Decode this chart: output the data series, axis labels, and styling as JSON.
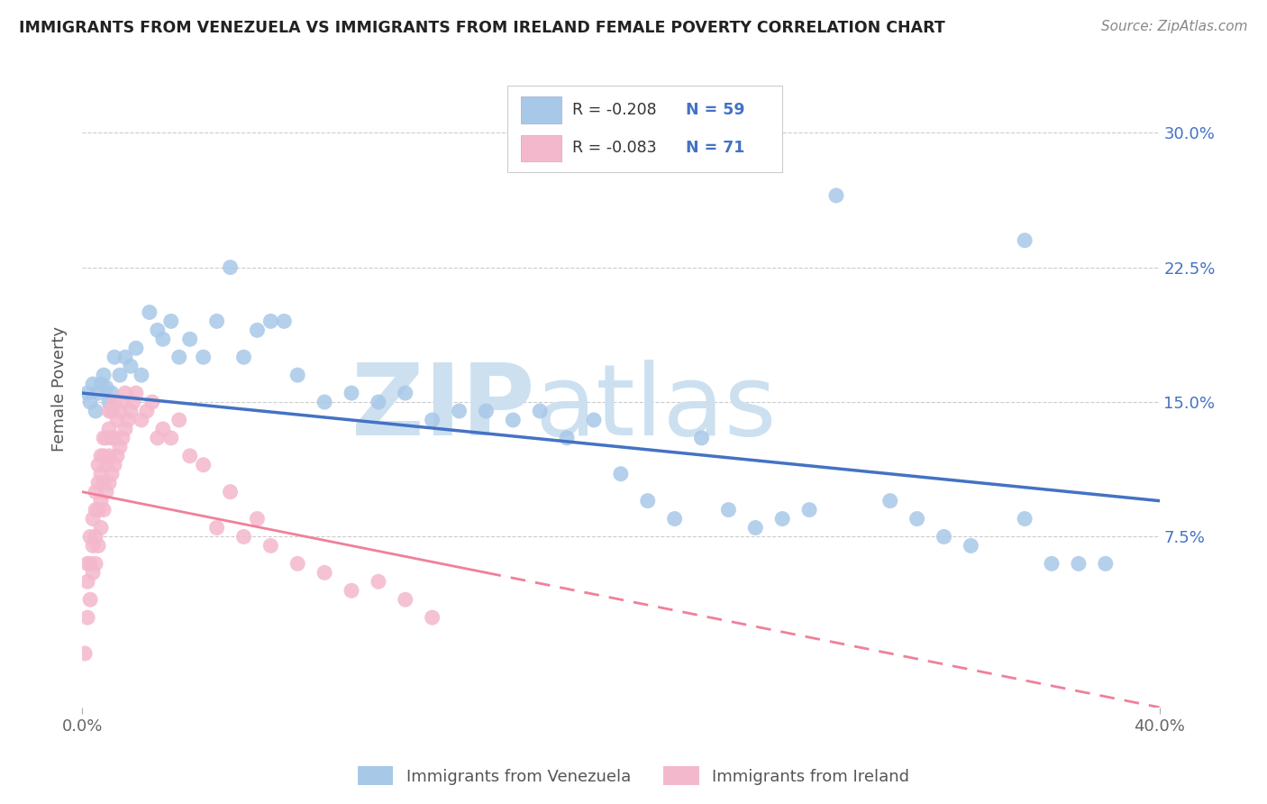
{
  "title": "IMMIGRANTS FROM VENEZUELA VS IMMIGRANTS FROM IRELAND FEMALE POVERTY CORRELATION CHART",
  "source": "Source: ZipAtlas.com",
  "ylabel": "Female Poverty",
  "ytick_labels": [
    "7.5%",
    "15.0%",
    "22.5%",
    "30.0%"
  ],
  "ytick_values": [
    0.075,
    0.15,
    0.225,
    0.3
  ],
  "xlim": [
    0.0,
    0.4
  ],
  "ylim": [
    -0.02,
    0.335
  ],
  "legend_r1": "R = -0.208",
  "legend_n1": "N = 59",
  "legend_r2": "R = -0.083",
  "legend_n2": "N = 71",
  "color_venezuela": "#a8c8e8",
  "color_ireland": "#f4b8cc",
  "color_text_blue": "#4472c4",
  "color_line_venezuela": "#4472c4",
  "color_line_ireland": "#f08098",
  "background_color": "#ffffff",
  "watermark_zip": "ZIP",
  "watermark_atlas": "atlas",
  "watermark_color": "#cce0f0",
  "venezuela_x": [
    0.002,
    0.003,
    0.004,
    0.005,
    0.006,
    0.007,
    0.008,
    0.009,
    0.01,
    0.011,
    0.012,
    0.014,
    0.016,
    0.018,
    0.02,
    0.022,
    0.025,
    0.028,
    0.03,
    0.033,
    0.036,
    0.04,
    0.045,
    0.05,
    0.055,
    0.06,
    0.065,
    0.07,
    0.075,
    0.08,
    0.09,
    0.1,
    0.11,
    0.12,
    0.13,
    0.14,
    0.15,
    0.16,
    0.17,
    0.18,
    0.19,
    0.2,
    0.21,
    0.22,
    0.23,
    0.24,
    0.25,
    0.26,
    0.27,
    0.28,
    0.3,
    0.31,
    0.32,
    0.33,
    0.35,
    0.36,
    0.37,
    0.38,
    0.35
  ],
  "venezuela_y": [
    0.155,
    0.15,
    0.16,
    0.145,
    0.155,
    0.16,
    0.165,
    0.158,
    0.15,
    0.155,
    0.175,
    0.165,
    0.175,
    0.17,
    0.18,
    0.165,
    0.2,
    0.19,
    0.185,
    0.195,
    0.175,
    0.185,
    0.175,
    0.195,
    0.225,
    0.175,
    0.19,
    0.195,
    0.195,
    0.165,
    0.15,
    0.155,
    0.15,
    0.155,
    0.14,
    0.145,
    0.145,
    0.14,
    0.145,
    0.13,
    0.14,
    0.11,
    0.095,
    0.085,
    0.13,
    0.09,
    0.08,
    0.085,
    0.09,
    0.265,
    0.095,
    0.085,
    0.075,
    0.07,
    0.085,
    0.06,
    0.06,
    0.06,
    0.24
  ],
  "ireland_x": [
    0.001,
    0.002,
    0.002,
    0.002,
    0.003,
    0.003,
    0.003,
    0.004,
    0.004,
    0.004,
    0.005,
    0.005,
    0.005,
    0.005,
    0.006,
    0.006,
    0.006,
    0.006,
    0.007,
    0.007,
    0.007,
    0.007,
    0.008,
    0.008,
    0.008,
    0.008,
    0.009,
    0.009,
    0.009,
    0.01,
    0.01,
    0.01,
    0.01,
    0.011,
    0.011,
    0.011,
    0.012,
    0.012,
    0.012,
    0.013,
    0.013,
    0.014,
    0.014,
    0.015,
    0.015,
    0.016,
    0.016,
    0.017,
    0.018,
    0.019,
    0.02,
    0.022,
    0.024,
    0.026,
    0.028,
    0.03,
    0.033,
    0.036,
    0.04,
    0.045,
    0.05,
    0.055,
    0.06,
    0.065,
    0.07,
    0.08,
    0.09,
    0.1,
    0.11,
    0.12,
    0.13
  ],
  "ireland_y": [
    0.01,
    0.03,
    0.05,
    0.06,
    0.04,
    0.06,
    0.075,
    0.055,
    0.07,
    0.085,
    0.06,
    0.075,
    0.09,
    0.1,
    0.07,
    0.09,
    0.105,
    0.115,
    0.08,
    0.095,
    0.11,
    0.12,
    0.09,
    0.105,
    0.12,
    0.13,
    0.1,
    0.115,
    0.13,
    0.105,
    0.12,
    0.135,
    0.145,
    0.11,
    0.13,
    0.145,
    0.115,
    0.13,
    0.15,
    0.12,
    0.14,
    0.125,
    0.145,
    0.13,
    0.15,
    0.135,
    0.155,
    0.14,
    0.145,
    0.15,
    0.155,
    0.14,
    0.145,
    0.15,
    0.13,
    0.135,
    0.13,
    0.14,
    0.12,
    0.115,
    0.08,
    0.1,
    0.075,
    0.085,
    0.07,
    0.06,
    0.055,
    0.045,
    0.05,
    0.04,
    0.03
  ]
}
